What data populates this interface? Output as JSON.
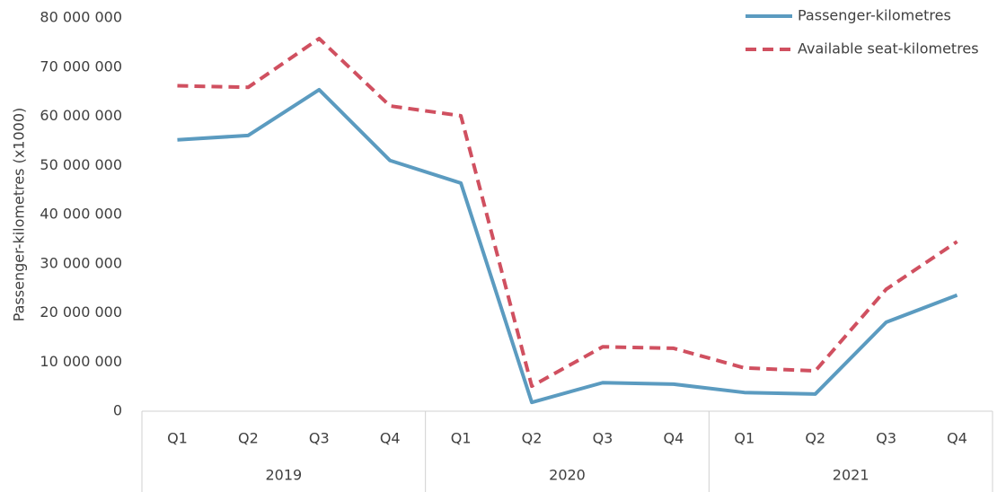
{
  "chart_data": {
    "type": "line",
    "y_axis_label": "Passenger-kilometres (x1000)",
    "categories": [
      "Q1",
      "Q2",
      "Q3",
      "Q4",
      "Q1",
      "Q2",
      "Q3",
      "Q4",
      "Q1",
      "Q2",
      "Q3",
      "Q4"
    ],
    "groups": [
      "2019",
      "2020",
      "2021"
    ],
    "series": [
      {
        "name": "Passenger-kilometres",
        "color": "#5b9bc0",
        "dash": "solid",
        "values": [
          55200000,
          56100000,
          65400000,
          51000000,
          46400000,
          1800000,
          5800000,
          5500000,
          3800000,
          3500000,
          18100000,
          23600000
        ]
      },
      {
        "name": "Available seat-kilometres",
        "color": "#d05060",
        "dash": "dashed",
        "values": [
          66200000,
          65900000,
          75800000,
          62100000,
          60100000,
          5100000,
          13100000,
          12800000,
          8800000,
          8200000,
          24800000,
          34500000
        ]
      }
    ],
    "ylim": [
      0,
      80000000
    ],
    "yticks": [
      0,
      {
        "value": 10000000,
        "label": "10 000 000"
      },
      {
        "value": 20000000,
        "label": "20 000 000"
      },
      {
        "value": 30000000,
        "label": "30 000 000"
      },
      {
        "value": 40000000,
        "label": "40 000 000"
      },
      {
        "value": 50000000,
        "label": "50 000 000"
      },
      {
        "value": 60000000,
        "label": "60 000 000"
      },
      {
        "value": 70000000,
        "label": "70 000 000"
      },
      {
        "value": 80000000,
        "label": "80 000 000"
      }
    ],
    "grid": false,
    "legend": "top-right"
  }
}
